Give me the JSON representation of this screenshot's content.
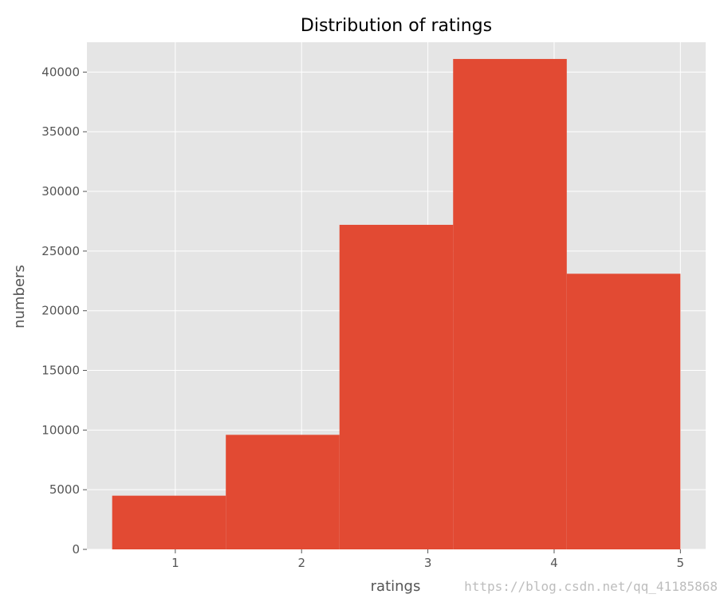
{
  "watermark": "https://blog.csdn.net/qq_41185868",
  "colors": {
    "background": "#ffffff",
    "plot_background": "#e5e5e5",
    "grid": "#ffffff",
    "bar": "#e24a33",
    "tick": "#555555",
    "title": "#000000"
  },
  "chart_data": {
    "type": "bar",
    "title": "Distribution of ratings",
    "xlabel": "ratings",
    "ylabel": "numbers",
    "grid": true,
    "xlim": [
      0.3,
      5.2
    ],
    "ylim": [
      0,
      42500
    ],
    "xticks": [
      1,
      2,
      3,
      4,
      5
    ],
    "yticks": [
      0,
      5000,
      10000,
      15000,
      20000,
      25000,
      30000,
      35000,
      40000
    ],
    "xtick_labels": [
      "1",
      "2",
      "3",
      "4",
      "5"
    ],
    "ytick_labels": [
      "0",
      "5000",
      "10000",
      "15000",
      "20000",
      "25000",
      "30000",
      "35000",
      "40000"
    ],
    "bins": [
      {
        "x0": 0.5,
        "x1": 1.4,
        "value": 4500
      },
      {
        "x0": 1.4,
        "x1": 2.3,
        "value": 9600
      },
      {
        "x0": 2.3,
        "x1": 3.2,
        "value": 27200
      },
      {
        "x0": 3.2,
        "x1": 4.1,
        "value": 41100
      },
      {
        "x0": 4.1,
        "x1": 5.0,
        "value": 23100
      }
    ]
  }
}
